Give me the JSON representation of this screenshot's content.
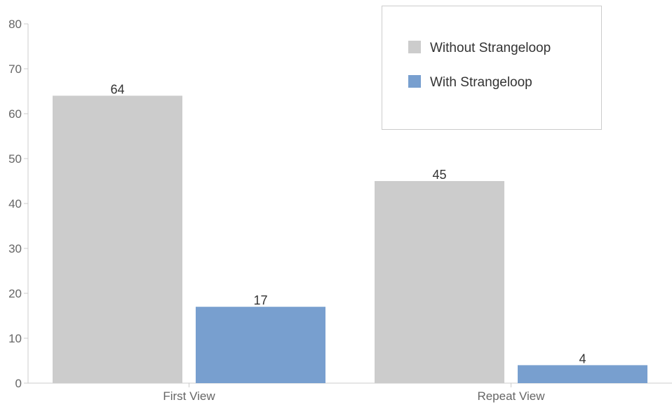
{
  "chart_data": {
    "type": "bar",
    "categories": [
      "First View",
      "Repeat View"
    ],
    "series": [
      {
        "name": "Without Strangeloop",
        "color": "#cccccc",
        "values": [
          64,
          45
        ]
      },
      {
        "name": "With Strangeloop",
        "color": "#789fcf",
        "values": [
          17,
          4
        ]
      }
    ],
    "ylim": [
      0,
      80
    ],
    "yticks": [
      0,
      10,
      20,
      30,
      40,
      50,
      60,
      70,
      80
    ],
    "grid": false,
    "legend_position": "top-right",
    "show_data_labels": true,
    "title": "",
    "xlabel": "",
    "ylabel": ""
  }
}
